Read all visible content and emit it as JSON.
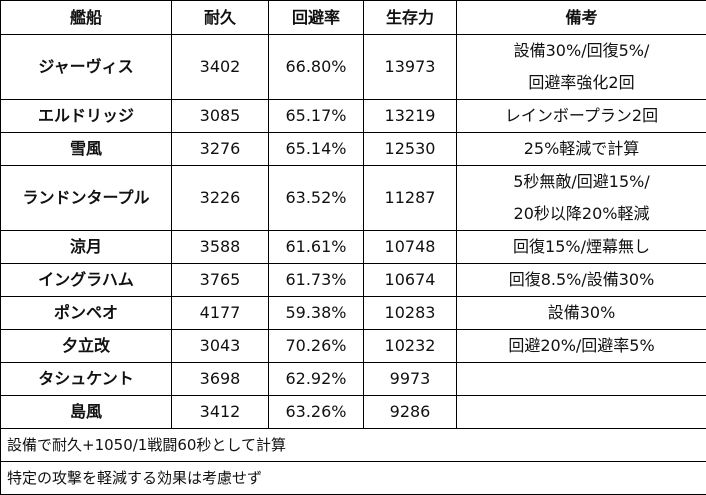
{
  "headers": {
    "ship": "艦船",
    "durability": "耐久",
    "evasion": "回避率",
    "survival": "生存力",
    "notes": "備考"
  },
  "rows": [
    {
      "ship": "ジャーヴィス",
      "durability": "3402",
      "evasion": "66.80%",
      "survival": "13973",
      "notes": [
        "設備30%/回復5%/",
        "回避率強化2回"
      ]
    },
    {
      "ship": "エルドリッジ",
      "durability": "3085",
      "evasion": "65.17%",
      "survival": "13219",
      "notes": [
        "レインボープラン2回"
      ]
    },
    {
      "ship": "雪風",
      "durability": "3276",
      "evasion": "65.14%",
      "survival": "12530",
      "notes": [
        "25%軽減で計算"
      ]
    },
    {
      "ship": "ランドンタープル",
      "durability": "3226",
      "evasion": "63.52%",
      "survival": "11287",
      "notes": [
        "5秒無敵/回避15%/",
        "20秒以降20%軽減"
      ]
    },
    {
      "ship": "涼月",
      "durability": "3588",
      "evasion": "61.61%",
      "survival": "10748",
      "notes": [
        "回復15%/煙幕無し"
      ]
    },
    {
      "ship": "イングラハム",
      "durability": "3765",
      "evasion": "61.73%",
      "survival": "10674",
      "notes": [
        "回復8.5%/設備30%"
      ]
    },
    {
      "ship": "ポンペオ",
      "durability": "4177",
      "evasion": "59.38%",
      "survival": "10283",
      "notes": [
        "設備30%"
      ]
    },
    {
      "ship": "夕立改",
      "durability": "3043",
      "evasion": "70.26%",
      "survival": "10232",
      "notes": [
        "回避20%/回避率5%"
      ]
    },
    {
      "ship": "タシュケント",
      "durability": "3698",
      "evasion": "62.92%",
      "survival": "9973",
      "notes": [
        ""
      ]
    },
    {
      "ship": "島風",
      "durability": "3412",
      "evasion": "63.26%",
      "survival": "9286",
      "notes": [
        ""
      ]
    }
  ],
  "footnotes": [
    "設備で耐久+1050/1戦闘60秒として計算",
    "特定の攻撃を軽減する効果は考慮せず"
  ]
}
